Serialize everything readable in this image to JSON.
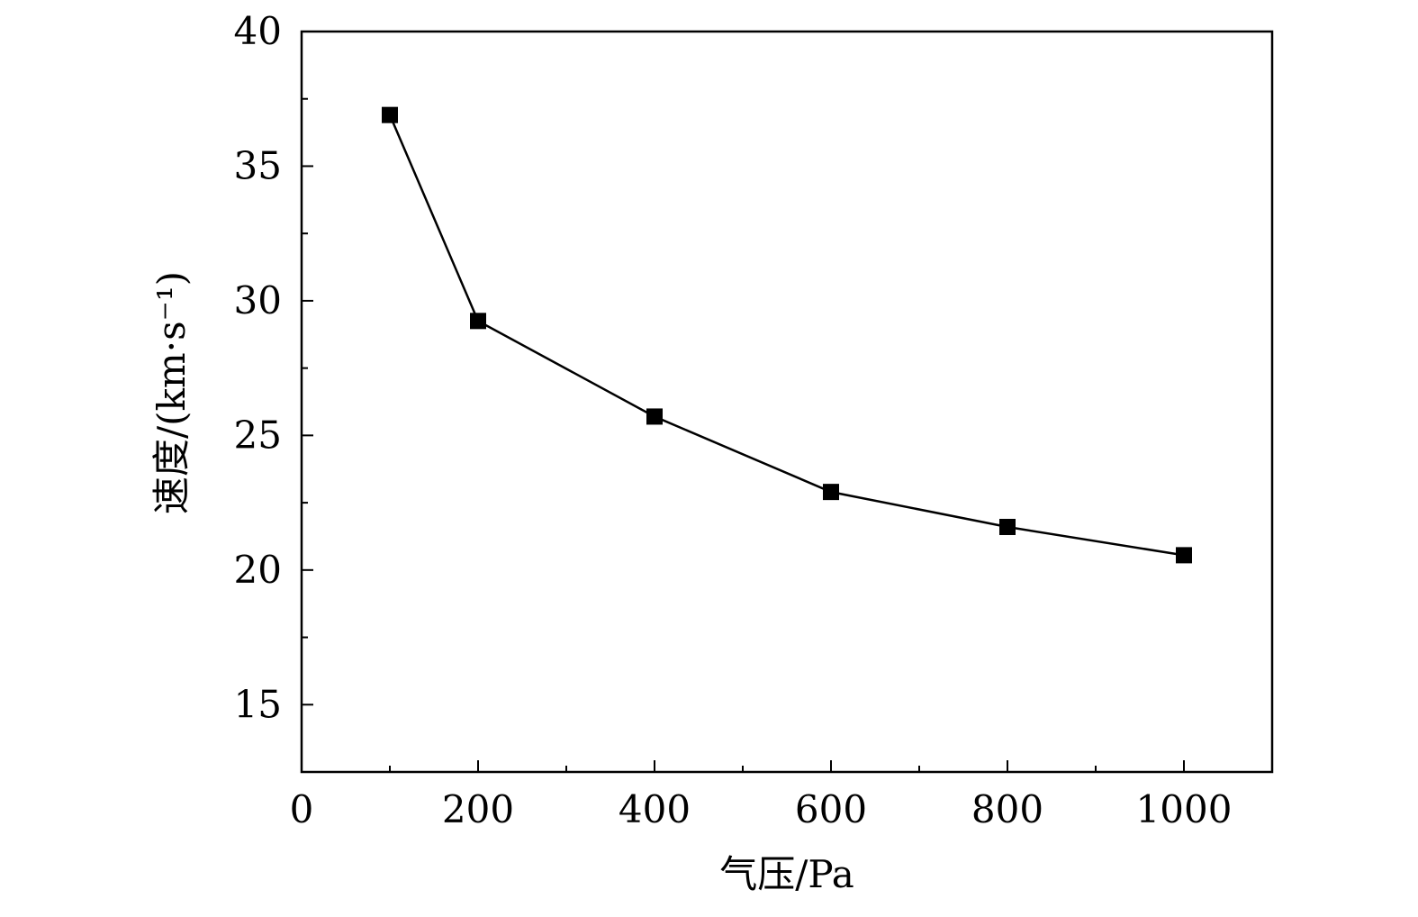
{
  "chart_data": {
    "type": "line",
    "title": "",
    "xlabel": "气压/Pa",
    "ylabel": "速度/(km·s⁻¹)",
    "xlim": [
      0,
      1100
    ],
    "ylim": [
      12.5,
      40
    ],
    "x_ticks": [
      0,
      200,
      400,
      600,
      800,
      1000
    ],
    "x_tick_labels": [
      "0",
      "200",
      "400",
      "600",
      "800",
      "1000"
    ],
    "x_minor_ticks": [
      100,
      300,
      500,
      700,
      900
    ],
    "y_ticks": [
      15,
      20,
      25,
      30,
      35,
      40
    ],
    "y_tick_labels": [
      "15",
      "20",
      "25",
      "30",
      "35",
      "40"
    ],
    "y_minor_ticks": [
      17.5,
      22.5,
      27.5,
      32.5,
      37.5
    ],
    "grid": false,
    "legend": "none",
    "series": [
      {
        "x": [
          100,
          200,
          400,
          600,
          800,
          1000
        ],
        "y": [
          36.9,
          29.25,
          25.7,
          22.9,
          21.6,
          20.55
        ],
        "marker": "square",
        "color": "#000000"
      }
    ]
  }
}
